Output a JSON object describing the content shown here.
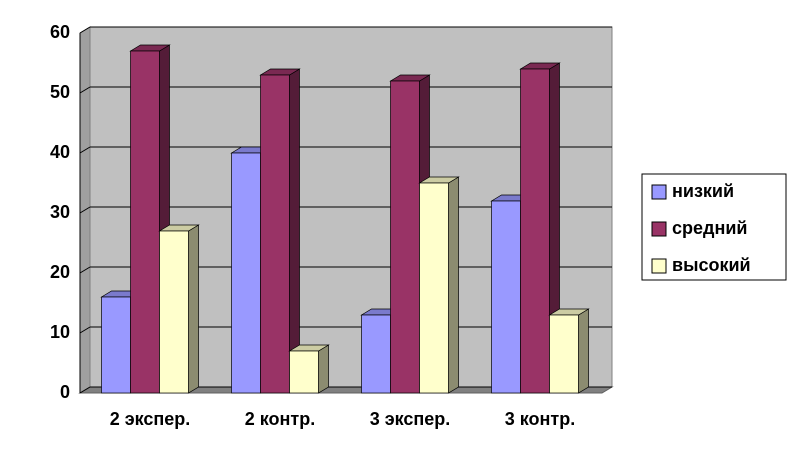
{
  "chart_data": {
    "type": "bar3d",
    "categories": [
      "2 экспер.",
      "2 контр.",
      "3 экспер.",
      "3 контр."
    ],
    "series": [
      {
        "name": "низкий",
        "color": "#9999ff",
        "values": [
          16,
          40,
          13,
          32
        ]
      },
      {
        "name": "средний",
        "color": "#993366",
        "values": [
          57,
          53,
          52,
          54
        ]
      },
      {
        "name": "высокий",
        "color": "#ffffcc",
        "values": [
          27,
          7,
          35,
          13
        ]
      }
    ],
    "ylim": [
      0,
      60
    ],
    "yticks": [
      0,
      10,
      20,
      30,
      40,
      50,
      60
    ],
    "grid": true,
    "legend": "right"
  }
}
